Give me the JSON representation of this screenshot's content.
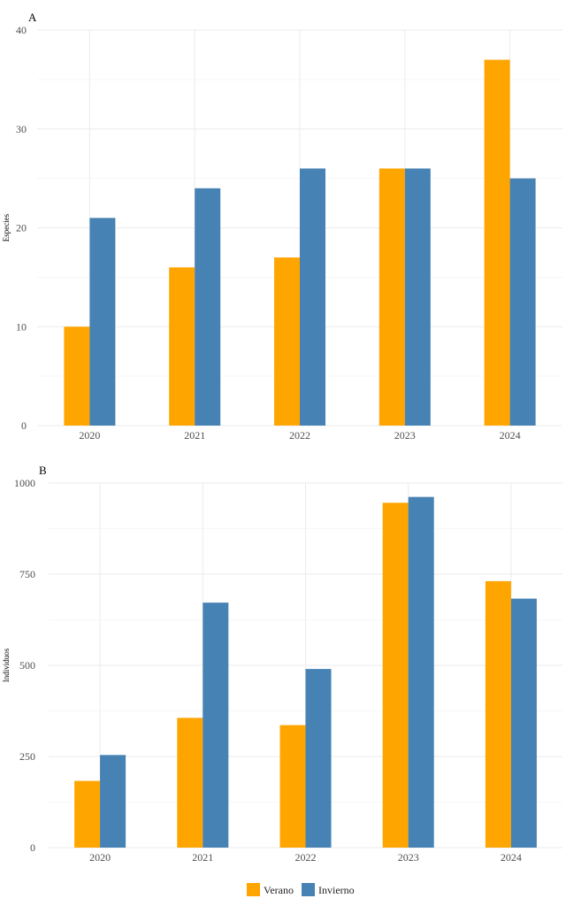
{
  "chart_data": [
    {
      "type": "bar",
      "panel_label": "A",
      "ylabel": "Especies",
      "xlabel": "",
      "categories": [
        "2020",
        "2021",
        "2022",
        "2023",
        "2024"
      ],
      "ylim": [
        0,
        40
      ],
      "yticks": [
        0,
        10,
        20,
        30,
        40
      ],
      "grid": true,
      "series": [
        {
          "name": "Verano",
          "color": "#FFA500",
          "values": [
            10,
            16,
            17,
            26,
            37
          ]
        },
        {
          "name": "Invierno",
          "color": "#4682B4",
          "values": [
            21,
            24,
            26,
            26,
            25
          ]
        }
      ]
    },
    {
      "type": "bar",
      "panel_label": "B",
      "ylabel": "Individuos",
      "xlabel": "",
      "categories": [
        "2020",
        "2021",
        "2022",
        "2023",
        "2024"
      ],
      "ylim": [
        0,
        1000
      ],
      "yticks": [
        0,
        250,
        500,
        750,
        1000
      ],
      "grid": true,
      "series": [
        {
          "name": "Verano",
          "color": "#FFA500",
          "values": [
            183,
            356,
            336,
            946,
            731
          ]
        },
        {
          "name": "Invierno",
          "color": "#4682B4",
          "values": [
            254,
            672,
            490,
            962,
            683
          ]
        }
      ]
    }
  ],
  "legend": {
    "position": "bottom",
    "items": [
      {
        "name": "Verano",
        "color": "#FFA500"
      },
      {
        "name": "Invierno",
        "color": "#4682B4"
      }
    ]
  }
}
